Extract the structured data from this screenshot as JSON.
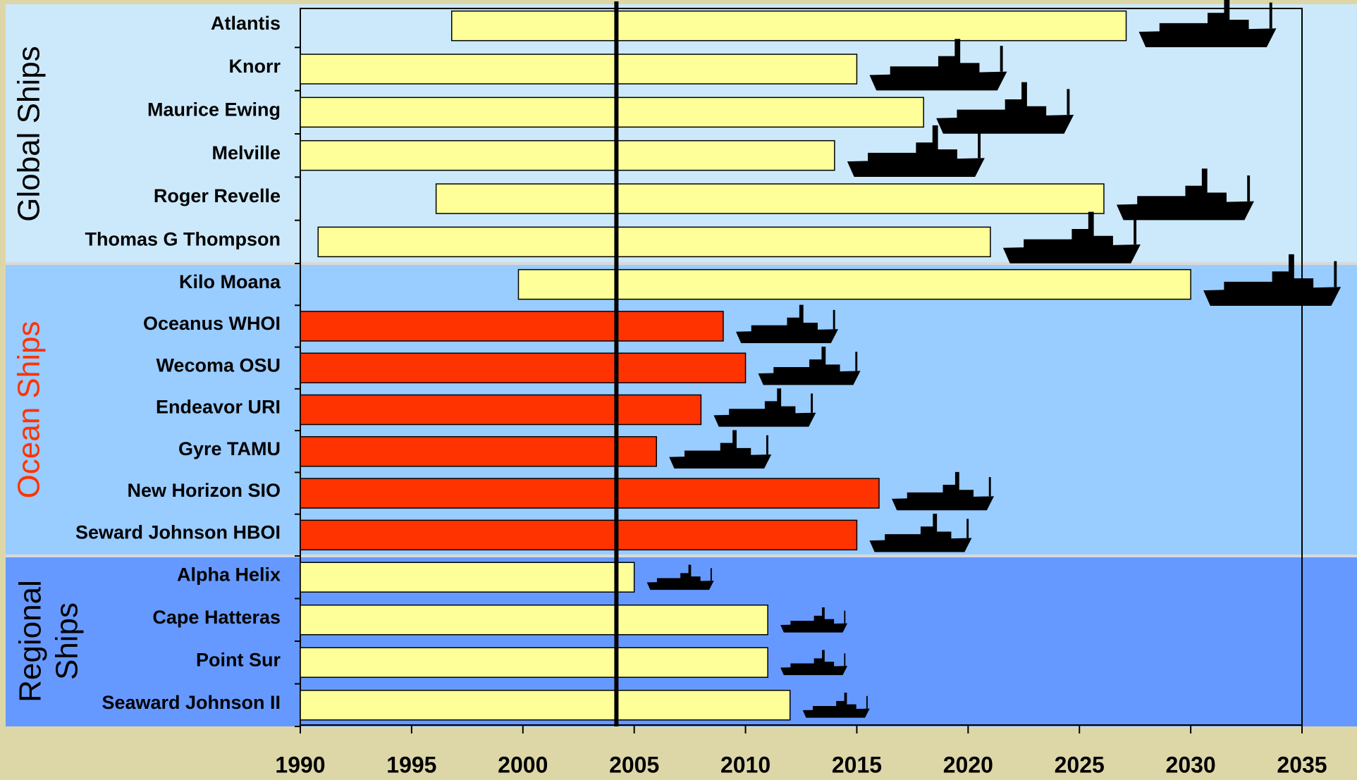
{
  "chart_data": {
    "type": "floating-bar",
    "groups": [
      {
        "label_lines": [
          "Global Ships"
        ],
        "label_color": "#000000",
        "band_color": "#cce9fb",
        "categories": [
          "Atlantis",
          "Knorr",
          "Maurice Ewing",
          "Melville",
          "Roger Revelle",
          "Thomas G Thompson"
        ],
        "start": [
          1996.8,
          1990,
          1990,
          1990,
          1996.1,
          1990.8
        ],
        "end": [
          2027.1,
          2015,
          2018,
          2014,
          2026.1,
          2021
        ],
        "colors": [
          "#ffff99",
          "#ffff99",
          "#ffff99",
          "#ffff99",
          "#ffff99",
          "#ffff99"
        ]
      },
      {
        "label_lines": [
          "Ocean Ships"
        ],
        "label_color": "#ff3300",
        "band_color": "#99ccff",
        "categories": [
          "Kilo Moana",
          "Oceanus WHOI",
          "Wecoma OSU",
          "Endeavor URI",
          "Gyre TAMU",
          "New Horizon SIO",
          "Seward Johnson HBOI"
        ],
        "start": [
          1999.8,
          1990,
          1990,
          1990,
          1990,
          1990,
          1990
        ],
        "end": [
          2030,
          2009,
          2010,
          2008,
          2006,
          2016,
          2015
        ],
        "colors": [
          "#ffff99",
          "#ff3300",
          "#ff3300",
          "#ff3300",
          "#ff3300",
          "#ff3300",
          "#ff3300"
        ]
      },
      {
        "label_lines": [
          "Regional",
          "Ships"
        ],
        "label_color": "#000000",
        "band_color": "#6699ff",
        "categories": [
          "Alpha Helix",
          "Cape Hatteras",
          "Point Sur",
          "Seaward Johnson II"
        ],
        "start": [
          1990,
          1990,
          1990,
          1990
        ],
        "end": [
          2005,
          2011,
          2011,
          2012
        ],
        "colors": [
          "#ffff99",
          "#ffff99",
          "#ffff99",
          "#ffff99"
        ]
      }
    ],
    "xlim": [
      1990,
      2035
    ],
    "xticks": [
      1990,
      1995,
      2000,
      2005,
      2010,
      2015,
      2020,
      2025,
      2030,
      2035
    ],
    "reference_line": 2004.2
  }
}
